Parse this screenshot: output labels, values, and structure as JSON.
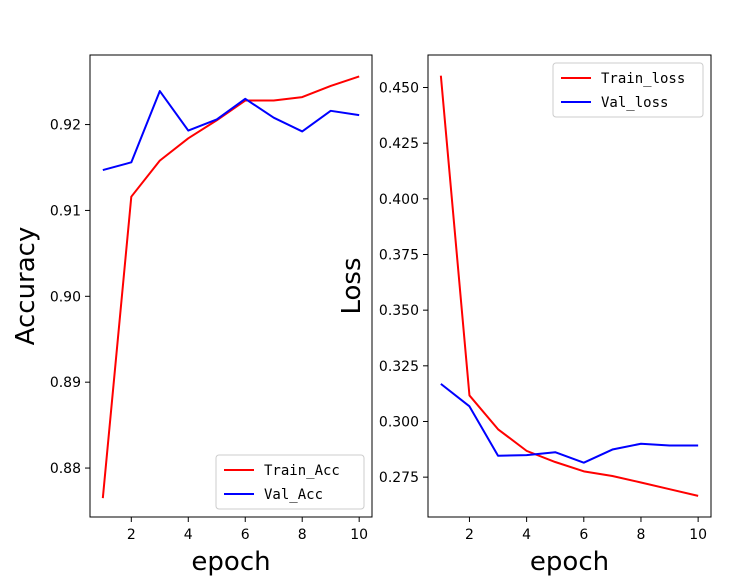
{
  "chart_data": [
    {
      "type": "line",
      "xlabel": "epoch",
      "ylabel": "Accuracy",
      "xlim": [
        0.55,
        10.45
      ],
      "ylim": [
        0.8743,
        0.9281
      ],
      "xticks": [
        2,
        4,
        6,
        8,
        10
      ],
      "xtick_labels": [
        "2",
        "4",
        "6",
        "8",
        "10"
      ],
      "yticks": [
        0.88,
        0.89,
        0.9,
        0.91,
        0.92
      ],
      "ytick_labels": [
        "0.88",
        "0.89",
        "0.90",
        "0.91",
        "0.92"
      ],
      "legend_position": "lower-right",
      "grid": false,
      "x": [
        1,
        2,
        3,
        4,
        5,
        6,
        7,
        8,
        9,
        10
      ],
      "series": [
        {
          "name": "Train_Acc",
          "color": "#ff0000",
          "values": [
            0.8765,
            0.9116,
            0.9158,
            0.9184,
            0.9205,
            0.9228,
            0.9228,
            0.9232,
            0.9245,
            0.9256
          ]
        },
        {
          "name": "Val_Acc",
          "color": "#0000ff",
          "values": [
            0.9147,
            0.9156,
            0.9239,
            0.9193,
            0.9206,
            0.923,
            0.9208,
            0.9192,
            0.9216,
            0.9211
          ]
        }
      ]
    },
    {
      "type": "line",
      "xlabel": "epoch",
      "ylabel": "Loss",
      "xlim": [
        0.55,
        10.45
      ],
      "ylim": [
        0.2571,
        0.4646
      ],
      "xticks": [
        2,
        4,
        6,
        8,
        10
      ],
      "xtick_labels": [
        "2",
        "4",
        "6",
        "8",
        "10"
      ],
      "yticks": [
        0.275,
        0.3,
        0.325,
        0.35,
        0.375,
        0.4,
        0.425,
        0.45
      ],
      "ytick_labels": [
        "0.275",
        "0.300",
        "0.325",
        "0.350",
        "0.375",
        "0.400",
        "0.425",
        "0.450"
      ],
      "legend_position": "upper-right",
      "grid": false,
      "x": [
        1,
        2,
        3,
        4,
        5,
        6,
        7,
        8,
        9,
        10
      ],
      "series": [
        {
          "name": "Train_loss",
          "color": "#ff0000",
          "values": [
            0.4553,
            0.3117,
            0.2965,
            0.2868,
            0.2818,
            0.2776,
            0.2755,
            0.2726,
            0.2696,
            0.2666
          ]
        },
        {
          "name": "Val_loss",
          "color": "#0000ff",
          "values": [
            0.3169,
            0.3068,
            0.2846,
            0.2849,
            0.2862,
            0.2815,
            0.2874,
            0.29,
            0.2892,
            0.2892
          ]
        }
      ]
    }
  ]
}
